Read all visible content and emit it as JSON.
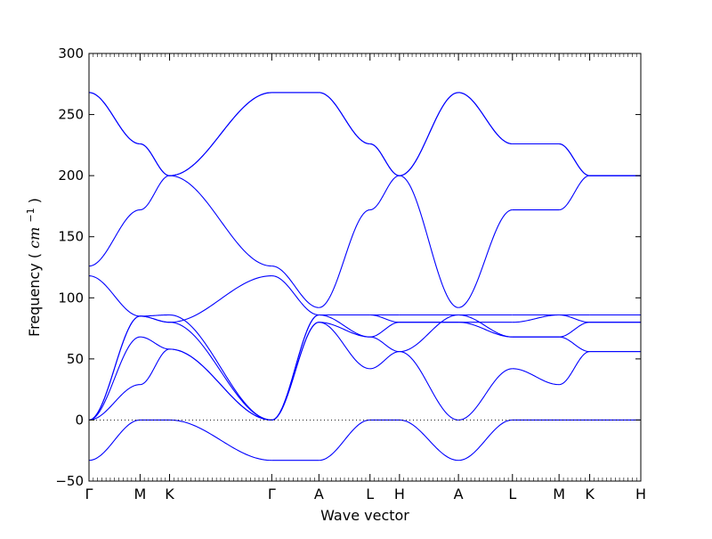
{
  "chart_data": {
    "type": "line",
    "title": "",
    "xlabel": "Wave vector",
    "ylabel_text": "Frequency",
    "ylabel_unit": "cm",
    "ylabel_unit_exp": "−1",
    "ylim": [
      -50,
      300
    ],
    "yticks": [
      -50,
      0,
      50,
      100,
      150,
      200,
      250,
      300
    ],
    "grid": false,
    "zero_line": "dotted",
    "x_positions": [
      0,
      1,
      1.577,
      3.577,
      4.5,
      5.5,
      6.077,
      7.231,
      8.288,
      9.2,
      9.8,
      10.8
    ],
    "x_labels": [
      "Γ",
      "M",
      "K",
      "Γ",
      "A",
      "L",
      "H",
      "A",
      "L",
      "M",
      "K",
      "H"
    ],
    "xlim": [
      0,
      10.8
    ],
    "segments": [
      {
        "from": "Γ",
        "to": "M",
        "x": [
          0,
          1
        ],
        "bands": [
          [
            -33,
            0
          ],
          [
            0,
            29
          ],
          [
            0,
            68
          ],
          [
            0,
            85
          ],
          [
            0,
            85
          ],
          [
            118,
            85
          ],
          [
            126,
            172
          ],
          [
            268,
            226
          ],
          [
            268,
            226
          ]
        ]
      },
      {
        "from": "M",
        "to": "K",
        "x": [
          1,
          1.577
        ],
        "bands": [
          [
            0,
            0
          ],
          [
            29,
            58
          ],
          [
            68,
            58
          ],
          [
            85,
            86
          ],
          [
            85,
            80
          ],
          [
            85,
            80
          ],
          [
            172,
            200
          ],
          [
            226,
            200
          ],
          [
            226,
            200
          ]
        ]
      },
      {
        "from": "K",
        "to": "Γ",
        "x": [
          1.577,
          3.577
        ],
        "bands": [
          [
            0,
            -33
          ],
          [
            58,
            0
          ],
          [
            58,
            0
          ],
          [
            86,
            0
          ],
          [
            80,
            0
          ],
          [
            80,
            118
          ],
          [
            200,
            126
          ],
          [
            200,
            268
          ],
          [
            200,
            268
          ]
        ]
      },
      {
        "from": "Γ",
        "to": "A",
        "x": [
          3.577,
          4.5
        ],
        "bands": [
          [
            -33,
            -33
          ],
          [
            0,
            80
          ],
          [
            0,
            80
          ],
          [
            0,
            86
          ],
          [
            0,
            86
          ],
          [
            118,
            86
          ],
          [
            126,
            92
          ],
          [
            268,
            268
          ],
          [
            268,
            268
          ]
        ]
      },
      {
        "from": "A",
        "to": "L",
        "x": [
          4.5,
          5.5
        ],
        "bands": [
          [
            -33,
            0
          ],
          [
            80,
            42
          ],
          [
            80,
            68
          ],
          [
            86,
            86
          ],
          [
            86,
            86
          ],
          [
            86,
            68
          ],
          [
            92,
            172
          ],
          [
            268,
            226
          ],
          [
            268,
            226
          ]
        ]
      },
      {
        "from": "L",
        "to": "H",
        "x": [
          5.5,
          6.077
        ],
        "bands": [
          [
            0,
            0
          ],
          [
            42,
            56
          ],
          [
            68,
            56
          ],
          [
            86,
            86
          ],
          [
            86,
            80
          ],
          [
            68,
            80
          ],
          [
            172,
            200
          ],
          [
            226,
            200
          ],
          [
            226,
            200
          ]
        ]
      },
      {
        "from": "H",
        "to": "A",
        "x": [
          6.077,
          7.231
        ],
        "bands": [
          [
            0,
            -33
          ],
          [
            56,
            0
          ],
          [
            56,
            86
          ],
          [
            86,
            86
          ],
          [
            80,
            80
          ],
          [
            80,
            80
          ],
          [
            200,
            268
          ],
          [
            200,
            92
          ],
          [
            200,
            268
          ]
        ]
      },
      {
        "from": "A",
        "to": "L",
        "x": [
          7.231,
          8.288
        ],
        "bands": [
          [
            -33,
            0
          ],
          [
            0,
            42
          ],
          [
            86,
            68
          ],
          [
            86,
            86
          ],
          [
            80,
            80
          ],
          [
            80,
            68
          ],
          [
            92,
            172
          ],
          [
            268,
            226
          ],
          [
            268,
            226
          ]
        ]
      },
      {
        "from": "L",
        "to": "M",
        "x": [
          8.288,
          9.2
        ],
        "bands": [
          [
            0,
            0
          ],
          [
            42,
            29
          ],
          [
            68,
            68
          ],
          [
            86,
            86
          ],
          [
            80,
            86
          ],
          [
            68,
            68
          ],
          [
            172,
            172
          ],
          [
            226,
            226
          ],
          [
            226,
            226
          ]
        ]
      },
      {
        "from": "M",
        "to": "K",
        "x": [
          9.2,
          9.8
        ],
        "bands": [
          [
            0,
            0
          ],
          [
            29,
            56
          ],
          [
            68,
            56
          ],
          [
            86,
            86
          ],
          [
            86,
            80
          ],
          [
            68,
            80
          ],
          [
            172,
            200
          ],
          [
            226,
            200
          ],
          [
            226,
            200
          ]
        ]
      },
      {
        "from": "K",
        "to": "H",
        "x": [
          9.8,
          10.8
        ],
        "bands": [
          [
            0,
            0
          ],
          [
            56,
            56
          ],
          [
            56,
            56
          ],
          [
            86,
            86
          ],
          [
            80,
            80
          ],
          [
            80,
            80
          ],
          [
            200,
            200
          ],
          [
            200,
            200
          ],
          [
            200,
            200
          ]
        ]
      }
    ]
  }
}
